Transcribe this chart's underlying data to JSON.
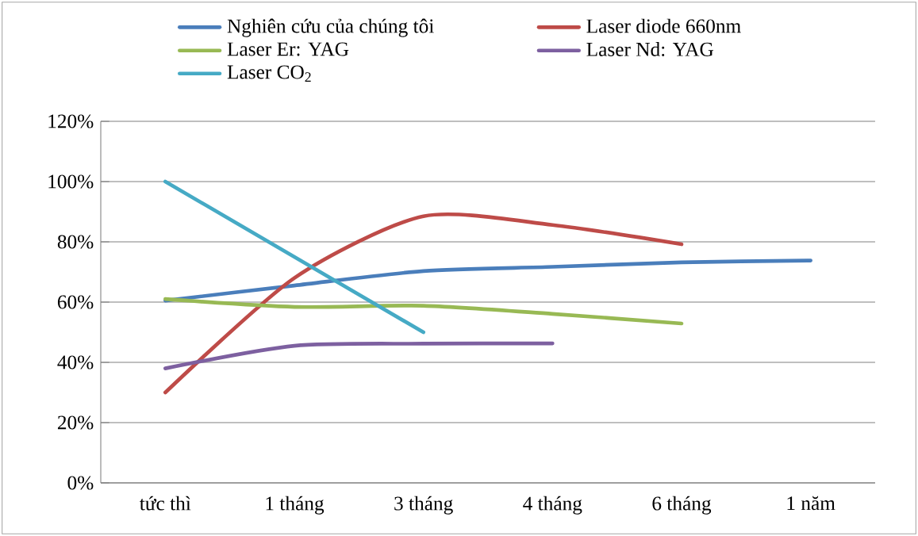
{
  "chart_data": {
    "type": "line",
    "categories": [
      "tức thì",
      "1 tháng",
      "3 tháng",
      "4 tháng",
      "6 tháng",
      "1 năm"
    ],
    "series": [
      {
        "name": "Nghiên cứu của chúng tôi",
        "color": "#4a7ebb",
        "values": [
          60.5,
          65.5,
          70.3,
          71.7,
          73.2,
          73.8
        ]
      },
      {
        "name": "Laser diode 660nm",
        "color": "#be4b48",
        "values": [
          30,
          68,
          88.5,
          85.6,
          79.2,
          null
        ]
      },
      {
        "name": "Laser Er: YAG",
        "color": "#98b954",
        "values": [
          61,
          58.4,
          58.8,
          56.1,
          52.9,
          null
        ]
      },
      {
        "name": "Laser Nd: YAG",
        "color": "#7d60a0",
        "values": [
          38,
          45.5,
          46.2,
          46.3,
          null,
          null
        ]
      },
      {
        "name": "Laser CO$_{2}$",
        "color": "#46aac5",
        "values": [
          100,
          75,
          50,
          null,
          null,
          null
        ]
      }
    ],
    "ylim": [
      0,
      120
    ],
    "yticks": [
      {
        "value": 0,
        "label": "0%"
      },
      {
        "value": 20,
        "label": "20%"
      },
      {
        "value": 40,
        "label": "40%"
      },
      {
        "value": 60,
        "label": "60%"
      },
      {
        "value": 80,
        "label": "80%"
      },
      {
        "value": 100,
        "label": "100%"
      },
      {
        "value": 120,
        "label": "120%"
      }
    ],
    "grid": "y",
    "legend": "top",
    "marker": "none",
    "line_style": "solid"
  }
}
